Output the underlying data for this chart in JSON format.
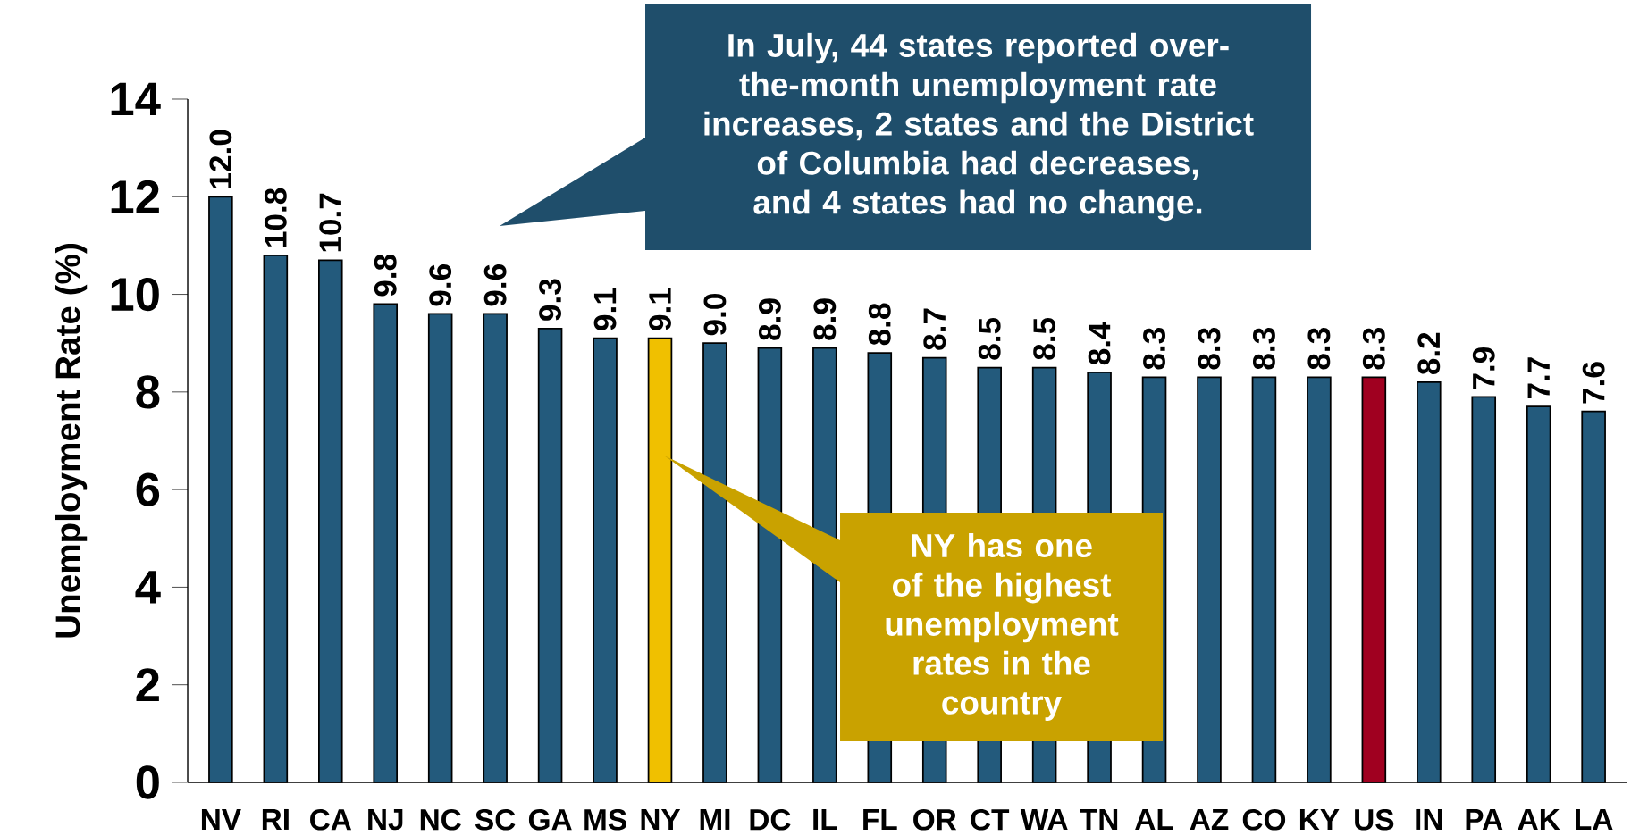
{
  "chart_data": {
    "type": "bar",
    "ylabel": "Unemployment Rate (%)",
    "categories": [
      "NV",
      "RI",
      "CA",
      "NJ",
      "NC",
      "SC",
      "GA",
      "MS",
      "NY",
      "MI",
      "DC",
      "IL",
      "FL",
      "OR",
      "CT",
      "WA",
      "TN",
      "AL",
      "AZ",
      "CO",
      "KY",
      "US",
      "IN",
      "PA",
      "AK",
      "LA"
    ],
    "values": [
      12.0,
      10.8,
      10.7,
      9.8,
      9.6,
      9.6,
      9.3,
      9.1,
      9.1,
      9.0,
      8.9,
      8.9,
      8.8,
      8.7,
      8.5,
      8.5,
      8.4,
      8.3,
      8.3,
      8.3,
      8.3,
      8.3,
      8.2,
      7.9,
      7.7,
      7.6
    ],
    "value_labels": [
      "12.0",
      "10.8",
      "10.7",
      "9.8",
      "9.6",
      "9.6",
      "9.3",
      "9.1",
      "9.1",
      "9.0",
      "8.9",
      "8.9",
      "8.8",
      "8.7",
      "8.5",
      "8.5",
      "8.4",
      "8.3",
      "8.3",
      "8.3",
      "8.3",
      "8.3",
      "8.2",
      "7.9",
      "7.7",
      "7.6"
    ],
    "colors": [
      "#235a7c",
      "#235a7c",
      "#235a7c",
      "#235a7c",
      "#235a7c",
      "#235a7c",
      "#235a7c",
      "#235a7c",
      "#f0c000",
      "#235a7c",
      "#235a7c",
      "#235a7c",
      "#235a7c",
      "#235a7c",
      "#235a7c",
      "#235a7c",
      "#235a7c",
      "#235a7c",
      "#235a7c",
      "#235a7c",
      "#235a7c",
      "#a00020",
      "#235a7c",
      "#235a7c",
      "#235a7c",
      "#235a7c"
    ],
    "ylim": [
      0,
      14
    ],
    "yticks": [
      0,
      2,
      4,
      6,
      8,
      10,
      12,
      14
    ],
    "annotations": [
      "In July, 44 states reported over-the-month unemployment rate increases, 2 states and the District of Columbia had decreases, and 4 states had no change.",
      "NY has one of the highest unemployment rates in the country"
    ]
  }
}
